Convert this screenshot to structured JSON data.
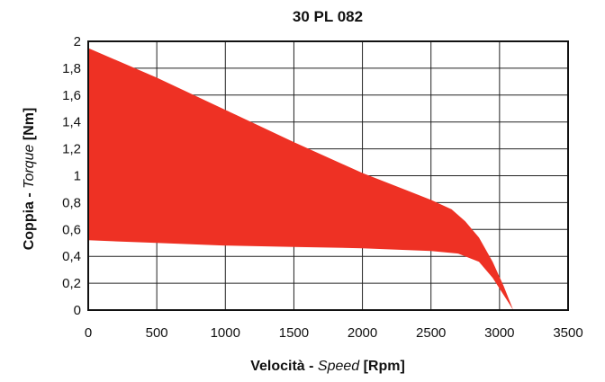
{
  "chart_data": {
    "type": "area",
    "title": "30 PL 082",
    "xlabel": {
      "part1": "Velocità - ",
      "part2": "Speed",
      "part3": " [Rpm]"
    },
    "ylabel": {
      "part1": "Coppia - ",
      "part2": "Torque",
      "part3": " [Nm]"
    },
    "xlim": [
      0,
      3500
    ],
    "ylim": [
      0,
      2
    ],
    "x_ticks": [
      "0",
      "500",
      "1000",
      "1500",
      "2000",
      "2500",
      "3000",
      "3500"
    ],
    "y_ticks": [
      "0",
      "0,2",
      "0,4",
      "0,6",
      "0,8",
      "1",
      "1,2",
      "1,4",
      "1,6",
      "1,8",
      "2"
    ],
    "grid": true,
    "fill_color": "#ee3124",
    "series": [
      {
        "values_upper": [
          {
            "x": 0,
            "y": 1.95
          },
          {
            "x": 500,
            "y": 1.73
          },
          {
            "x": 1000,
            "y": 1.49
          },
          {
            "x": 1500,
            "y": 1.25
          },
          {
            "x": 2000,
            "y": 1.02
          },
          {
            "x": 2300,
            "y": 0.9
          },
          {
            "x": 2500,
            "y": 0.82
          },
          {
            "x": 2650,
            "y": 0.75
          },
          {
            "x": 2750,
            "y": 0.66
          },
          {
            "x": 2850,
            "y": 0.54
          },
          {
            "x": 2950,
            "y": 0.36
          },
          {
            "x": 3030,
            "y": 0.18
          },
          {
            "x": 3100,
            "y": 0.0
          }
        ],
        "values_lower": [
          {
            "x": 0,
            "y": 0.52
          },
          {
            "x": 500,
            "y": 0.5
          },
          {
            "x": 1000,
            "y": 0.48
          },
          {
            "x": 1500,
            "y": 0.47
          },
          {
            "x": 2000,
            "y": 0.46
          },
          {
            "x": 2500,
            "y": 0.44
          },
          {
            "x": 2700,
            "y": 0.42
          },
          {
            "x": 2850,
            "y": 0.36
          },
          {
            "x": 2950,
            "y": 0.24
          },
          {
            "x": 3050,
            "y": 0.08
          },
          {
            "x": 3100,
            "y": 0.0
          }
        ]
      }
    ]
  }
}
